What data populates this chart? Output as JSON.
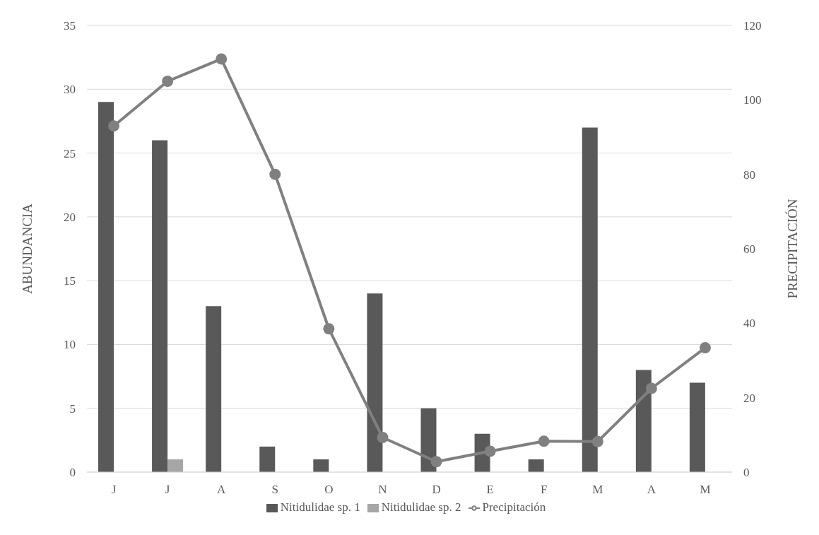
{
  "chart_data": {
    "type": "bar",
    "categories": [
      "J",
      "J",
      "A",
      "S",
      "O",
      "N",
      "D",
      "E",
      "F",
      "M",
      "A",
      "M"
    ],
    "series": [
      {
        "name": "Nitidulidae sp. 1",
        "color": "#595959",
        "values": [
          29,
          26,
          13,
          2,
          1,
          14,
          5,
          3,
          1,
          27,
          8,
          7
        ]
      },
      {
        "name": "Nitidulidae sp. 2",
        "color": "#a6a6a6",
        "values": [
          0,
          1,
          0,
          0,
          0,
          0,
          0,
          0,
          0,
          0,
          0,
          0
        ]
      },
      {
        "name": "Precipitación",
        "type": "line",
        "axis": "y2",
        "color": "#808080",
        "marker": "circle",
        "line_style": "solid",
        "values": [
          93,
          105,
          111,
          80,
          38.5,
          9.3,
          2.8,
          5.6,
          8.3,
          8.2,
          22.5,
          33.4
        ]
      }
    ],
    "ylabel": "ABUNDANCIA",
    "y2label": "PRECIPITACIÓN",
    "ylim": [
      0,
      35
    ],
    "yticks": [
      0,
      5,
      10,
      15,
      20,
      25,
      30,
      35
    ],
    "y2lim": [
      0,
      120
    ],
    "y2ticks": [
      0,
      20,
      40,
      60,
      80,
      100,
      120
    ],
    "grid": "y",
    "legend": "bottom"
  }
}
